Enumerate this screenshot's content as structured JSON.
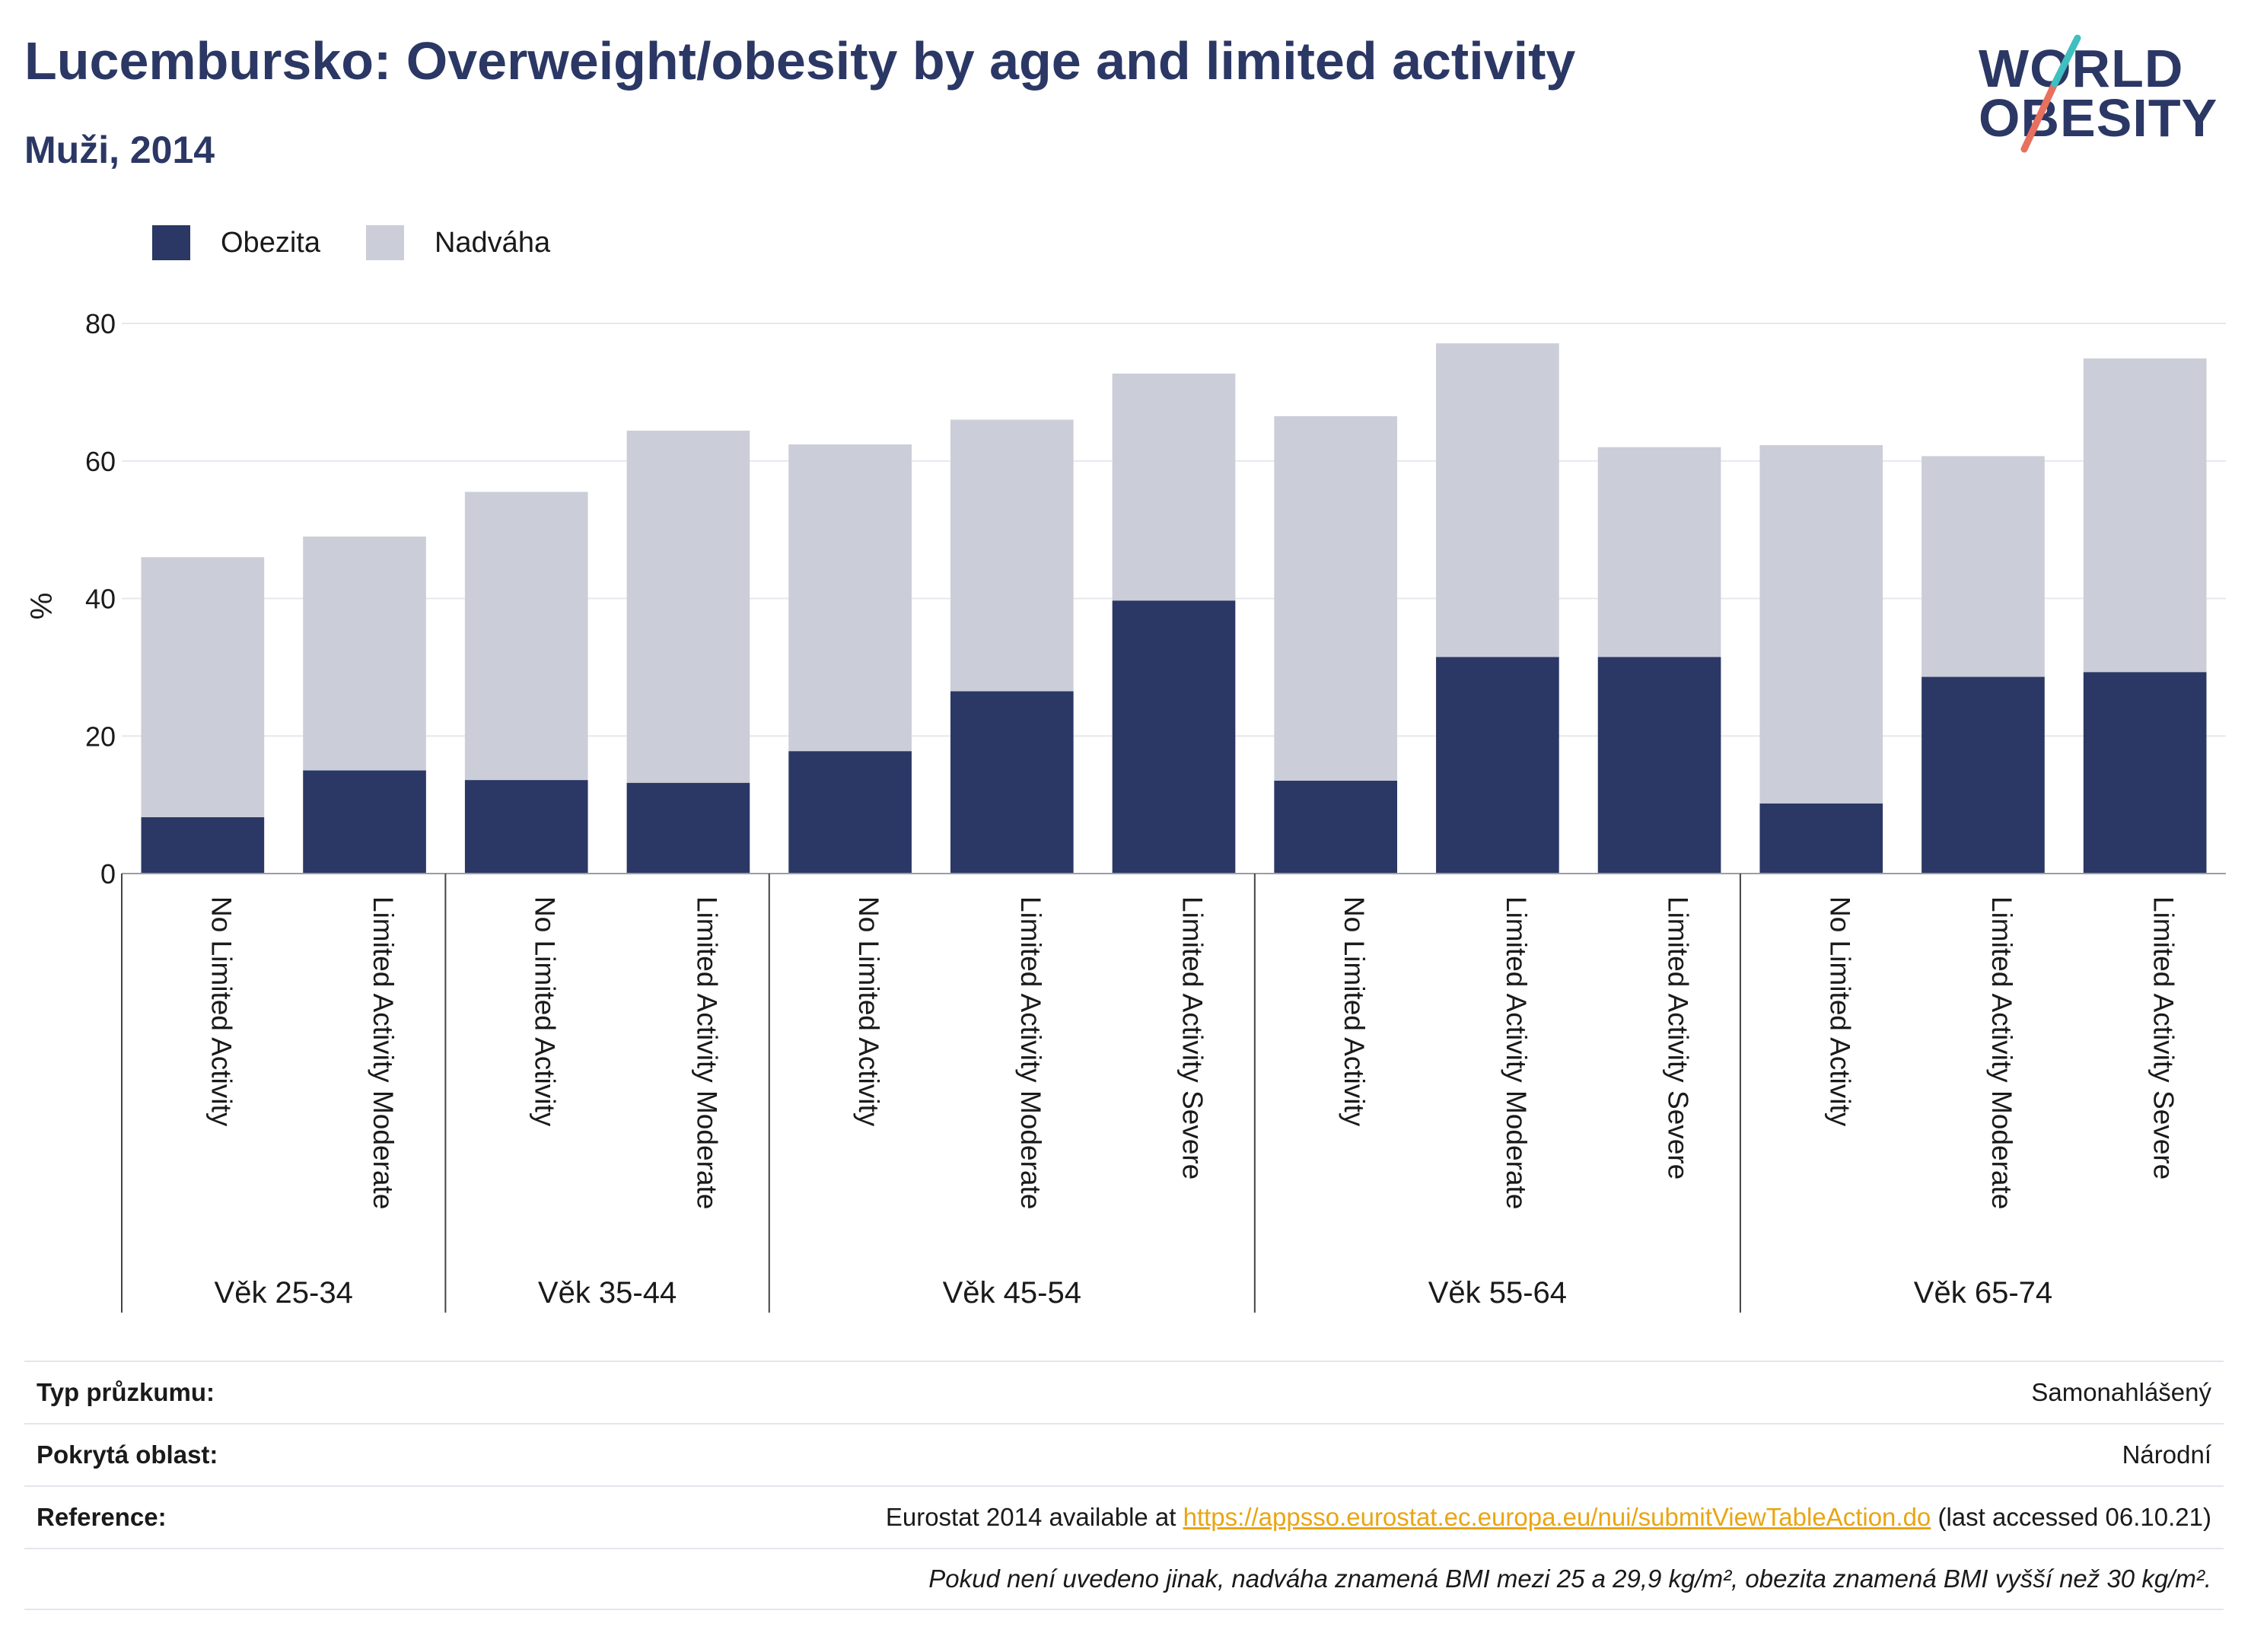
{
  "header": {
    "title": "Lucembursko: Overweight/obesity by age and limited activity",
    "subtitle": "Muži, 2014"
  },
  "logo": {
    "line1": "WORLD",
    "line2": "OBESITY"
  },
  "legend": [
    {
      "label": "Obezita",
      "color": "#2b3764"
    },
    {
      "label": "Nadváha",
      "color": "#cbcdd8"
    }
  ],
  "chart_data": {
    "type": "bar",
    "stacked": true,
    "ylabel": "%",
    "ylim": [
      0,
      80
    ],
    "yticks": [
      0,
      20,
      40,
      60,
      80
    ],
    "grid": true,
    "legend_position": "top-left",
    "groups": [
      {
        "label": "Věk 25-34",
        "categories": [
          "No Limited Activity",
          "Limited Activity Moderate"
        ]
      },
      {
        "label": "Věk 35-44",
        "categories": [
          "No Limited Activity",
          "Limited Activity Moderate"
        ]
      },
      {
        "label": "Věk 45-54",
        "categories": [
          "No Limited Activity",
          "Limited Activity Moderate",
          "Limited Activity Severe"
        ]
      },
      {
        "label": "Věk 55-64",
        "categories": [
          "No Limited Activity",
          "Limited Activity Moderate",
          "Limited Activity Severe"
        ]
      },
      {
        "label": "Věk 65-74",
        "categories": [
          "No Limited Activity",
          "Limited Activity Moderate",
          "Limited Activity Severe"
        ]
      }
    ],
    "series": [
      {
        "name": "Obezita",
        "color": "#2b3764",
        "values": [
          8.2,
          15.0,
          13.6,
          13.2,
          17.8,
          26.5,
          39.7,
          13.5,
          31.5,
          31.5,
          10.2,
          28.6,
          29.3
        ]
      },
      {
        "name": "Nadváha",
        "color": "#cbcdd8",
        "values": [
          37.8,
          34.0,
          41.9,
          51.2,
          44.6,
          39.5,
          33.0,
          53.0,
          45.6,
          30.5,
          52.1,
          32.1,
          45.6
        ]
      }
    ]
  },
  "info": {
    "survey_type": {
      "label": "Typ průzkumu:",
      "value": "Samonahlášený"
    },
    "coverage": {
      "label": "Pokrytá oblast:",
      "value": "Národní"
    },
    "reference": {
      "label": "Reference:",
      "prefix": "Eurostat 2014 available at ",
      "link": "https://appsso.eurostat.ec.europa.eu/nui/submitViewTableAction.do",
      "suffix": " (last accessed 06.10.21)"
    },
    "note": "Pokud není uvedeno jinak, nadváha znamená BMI mezi 25 a 29,9 kg/m², obezita znamená BMI vyšší než 30 kg/m²."
  }
}
